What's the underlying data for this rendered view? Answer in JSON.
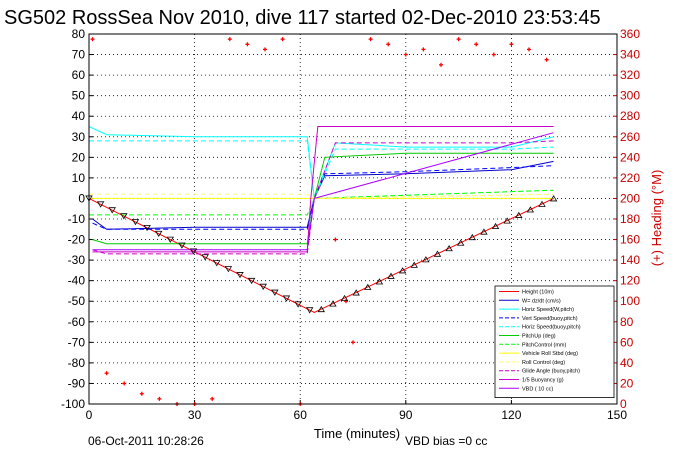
{
  "chart_data": {
    "type": "line",
    "title": "SG502 RossSea Nov 2010, dive 117 started 02-Dec-2010 23:53:45",
    "xlabel": "Time (minutes)",
    "ylabel_right": "(+) Heading (°M)",
    "xlim": [
      0,
      150
    ],
    "ylim": [
      -100,
      80
    ],
    "ylim_right": [
      0,
      360
    ],
    "x_ticks": [
      0,
      30,
      60,
      90,
      120,
      150
    ],
    "y_ticks": [
      -100,
      -90,
      -80,
      -70,
      -60,
      -50,
      -40,
      -30,
      -20,
      -10,
      0,
      10,
      20,
      30,
      40,
      50,
      60,
      70,
      80
    ],
    "y_ticks_right": [
      0,
      20,
      40,
      60,
      80,
      100,
      120,
      140,
      160,
      180,
      200,
      220,
      240,
      260,
      280,
      300,
      320,
      340,
      360
    ],
    "grid": true,
    "legend_position": "bottom-right",
    "footer_left": "06-Oct-2011 10:28:26",
    "footer_right": "VBD bias =0 cc",
    "series": [
      {
        "name": "Height (10m)",
        "color": "#ff0000",
        "style": "solid",
        "x": [
          0,
          64,
          132
        ],
        "y": [
          0,
          -55.5,
          0
        ]
      },
      {
        "name": "W= dz/dt (cm/s)",
        "color": "#0000cc",
        "style": "solid",
        "x": [
          1,
          5,
          30,
          62,
          64,
          67,
          90,
          120,
          132
        ],
        "y": [
          -10,
          -15,
          -14,
          -14,
          0,
          11,
          12,
          14,
          18
        ]
      },
      {
        "name": "Horiz Speed(W,pitch)",
        "color": "#00ffff",
        "style": "solid",
        "x": [
          0,
          5,
          30,
          62,
          64,
          70,
          90,
          120,
          132
        ],
        "y": [
          35,
          31,
          30,
          30,
          0,
          27,
          25,
          25,
          30
        ]
      },
      {
        "name": "Vert Speed(buoy,pitch)",
        "color": "#0000ff",
        "style": "dashed",
        "x": [
          1,
          5,
          30,
          62,
          64,
          67,
          90,
          120,
          132
        ],
        "y": [
          -12,
          -15,
          -15,
          -15,
          0,
          12,
          13,
          15,
          16
        ]
      },
      {
        "name": "Horiz Speed(buoy,pitch)",
        "color": "#00ffff",
        "style": "dashed",
        "x": [
          0,
          5,
          30,
          62,
          64,
          70,
          90,
          120,
          132
        ],
        "y": [
          28,
          28,
          28,
          28,
          0,
          24,
          24,
          24,
          25
        ]
      },
      {
        "name": "PitchUp (deg)",
        "color": "#00cc00",
        "style": "solid",
        "x": [
          1,
          5,
          30,
          62,
          64,
          67,
          90,
          120,
          132
        ],
        "y": [
          -20,
          -22,
          -22,
          -22,
          0,
          20,
          22,
          22,
          22
        ]
      },
      {
        "name": "PitchControl (mm)",
        "color": "#00ff00",
        "style": "dashed",
        "x": [
          0,
          62,
          64,
          132
        ],
        "y": [
          -8,
          -8,
          0,
          4
        ]
      },
      {
        "name": "Vehicle Roll Stbd (deg)",
        "color": "#ffff00",
        "style": "solid",
        "x": [
          0,
          10,
          30,
          62,
          64,
          75,
          90,
          120,
          132
        ],
        "y": [
          0,
          0,
          0,
          0,
          0,
          0,
          0,
          0,
          0
        ]
      },
      {
        "name": "Roll Control (deg)",
        "color": "#ffff66",
        "style": "dashed",
        "x": [
          0,
          62,
          64,
          132
        ],
        "y": [
          2,
          2,
          0,
          2
        ]
      },
      {
        "name": "Glide Angle (buoy,pitch)",
        "color": "#cc00cc",
        "style": "dashed",
        "x": [
          1,
          5,
          30,
          62,
          64,
          70,
          90,
          120,
          132
        ],
        "y": [
          -25,
          -27,
          -27,
          -27,
          0,
          27,
          27,
          27,
          28
        ]
      },
      {
        "name": "1/5 Buoyancy (g)",
        "color": "#cc00cc",
        "style": "solid",
        "x": [
          1,
          62,
          63,
          65,
          132
        ],
        "y": [
          -26,
          -26,
          0,
          35,
          35
        ]
      },
      {
        "name": "VBD ( 10 cc)",
        "color": "#aa00ff",
        "style": "solid",
        "x": [
          1,
          62,
          64,
          132
        ],
        "y": [
          -25,
          -25,
          0,
          32
        ]
      },
      {
        "name": "Heading",
        "color": "#ff0000",
        "style": "markers",
        "axis": "right",
        "x": [
          1,
          5,
          10,
          15,
          20,
          25,
          30,
          35,
          40,
          45,
          50,
          55,
          60,
          70,
          73,
          75,
          80,
          85,
          90,
          95,
          100,
          105,
          110,
          115,
          120,
          125,
          130
        ],
        "y": [
          355,
          30,
          20,
          10,
          5,
          0,
          0,
          5,
          355,
          350,
          345,
          355,
          0,
          160,
          100,
          60,
          355,
          350,
          340,
          345,
          330,
          355,
          350,
          340,
          350,
          345,
          335
        ]
      }
    ]
  }
}
